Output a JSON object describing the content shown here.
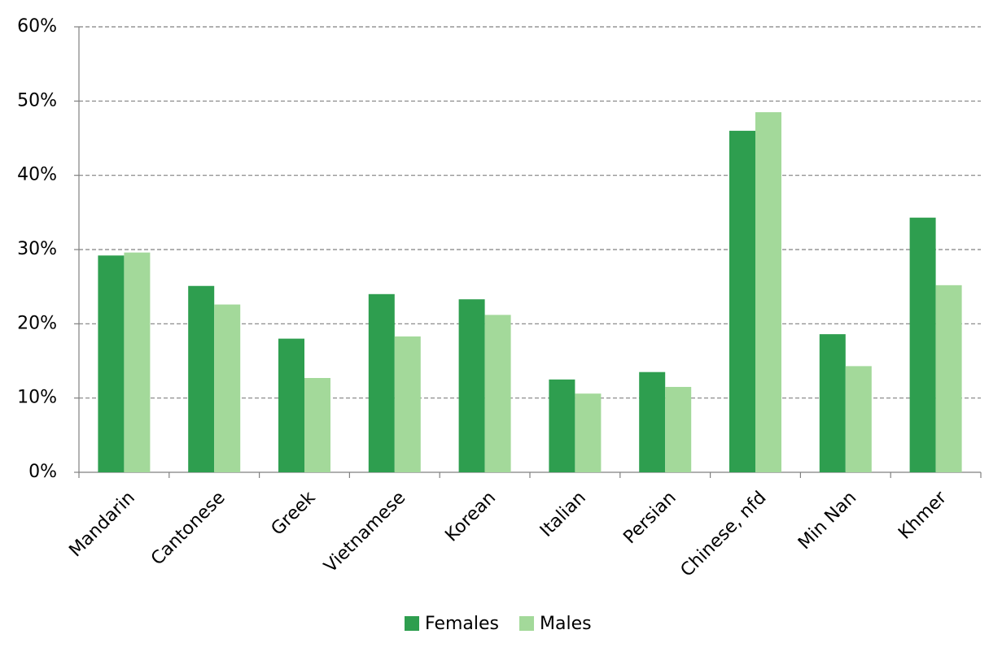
{
  "chart_data": {
    "type": "bar",
    "categories": [
      "Mandarin",
      "Cantonese",
      "Greek",
      "Vietnamese",
      "Korean",
      "Italian",
      "Persian",
      "Chinese, nfd",
      "Min Nan",
      "Khmer"
    ],
    "series": [
      {
        "name": "Females",
        "color": "#2e9e4f",
        "values": [
          29.2,
          25.1,
          18.0,
          24.0,
          23.3,
          12.5,
          13.5,
          46.0,
          18.6,
          34.3
        ]
      },
      {
        "name": "Males",
        "color": "#a3d99a",
        "values": [
          29.6,
          22.6,
          12.7,
          18.3,
          21.2,
          10.6,
          11.5,
          48.5,
          14.3,
          25.2
        ]
      }
    ],
    "ylim": [
      0,
      60
    ],
    "yticks": [
      {
        "value": 0,
        "label": "0%"
      },
      {
        "value": 10,
        "label": "10%"
      },
      {
        "value": 20,
        "label": "20%"
      },
      {
        "value": 30,
        "label": "30%"
      },
      {
        "value": 40,
        "label": "40%"
      },
      {
        "value": 50,
        "label": "50%"
      },
      {
        "value": 60,
        "label": "60%"
      }
    ],
    "grid": true,
    "legend": "bottom"
  }
}
